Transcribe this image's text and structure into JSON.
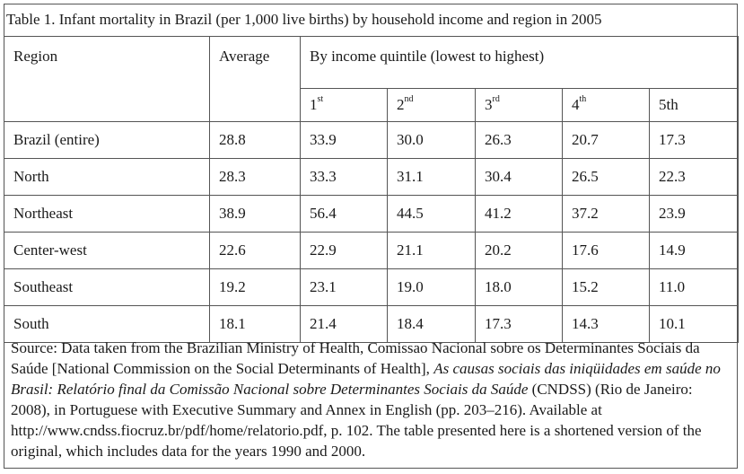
{
  "title": "Table 1. Infant mortality in Brazil (per 1,000 live births) by household income and region in 2005",
  "headers": {
    "region": "Region",
    "average": "Average",
    "quintile_group": "By income quintile (lowest to highest)",
    "quintiles": [
      {
        "num": "1",
        "sup": "st"
      },
      {
        "num": "2",
        "sup": "nd"
      },
      {
        "num": "3",
        "sup": "rd"
      },
      {
        "num": "4",
        "sup": "th"
      },
      {
        "num": "5th",
        "sup": ""
      }
    ]
  },
  "rows": [
    {
      "region": "Brazil (entire)",
      "average": "28.8",
      "q": [
        "33.9",
        "30.0",
        "26.3",
        "20.7",
        "17.3"
      ]
    },
    {
      "region": "North",
      "average": "28.3",
      "q": [
        "33.3",
        "31.1",
        "30.4",
        "26.5",
        "22.3"
      ]
    },
    {
      "region": "Northeast",
      "average": "38.9",
      "q": [
        "56.4",
        "44.5",
        "41.2",
        "37.2",
        "23.9"
      ]
    },
    {
      "region": "Center-west",
      "average": "22.6",
      "q": [
        "22.9",
        "21.1",
        "20.2",
        "17.6",
        "14.9"
      ]
    },
    {
      "region": "Southeast",
      "average": "19.2",
      "q": [
        "23.1",
        "19.0",
        "18.0",
        "15.2",
        "11.0"
      ]
    },
    {
      "region": "South",
      "average": "18.1",
      "q": [
        "21.4",
        "18.4",
        "17.3",
        "14.3",
        "10.1"
      ]
    }
  ],
  "source": {
    "part1": "Source: Data taken from the Brazilian Ministry of Health, Comissao Nacional sobre os Determinantes Sociais da Saúde [National Commission on the Social Determinants of Health], ",
    "italic": "As causas sociais das iniqüidades em saúde no Brasil: Relatório final da Comissão Nacional sobre Determinantes Sociais da Saúde",
    "part2": " (CNDSS) (Rio de Janeiro: 2008), in Portuguese with Executive Summary and Annex in English (pp. 203–216). Available at http://www.cndss.fiocruz.br/pdf/home/relatorio.pdf, p. 102. The table presented here is a shortened version of the original, which includes data for the years 1990 and 2000."
  }
}
